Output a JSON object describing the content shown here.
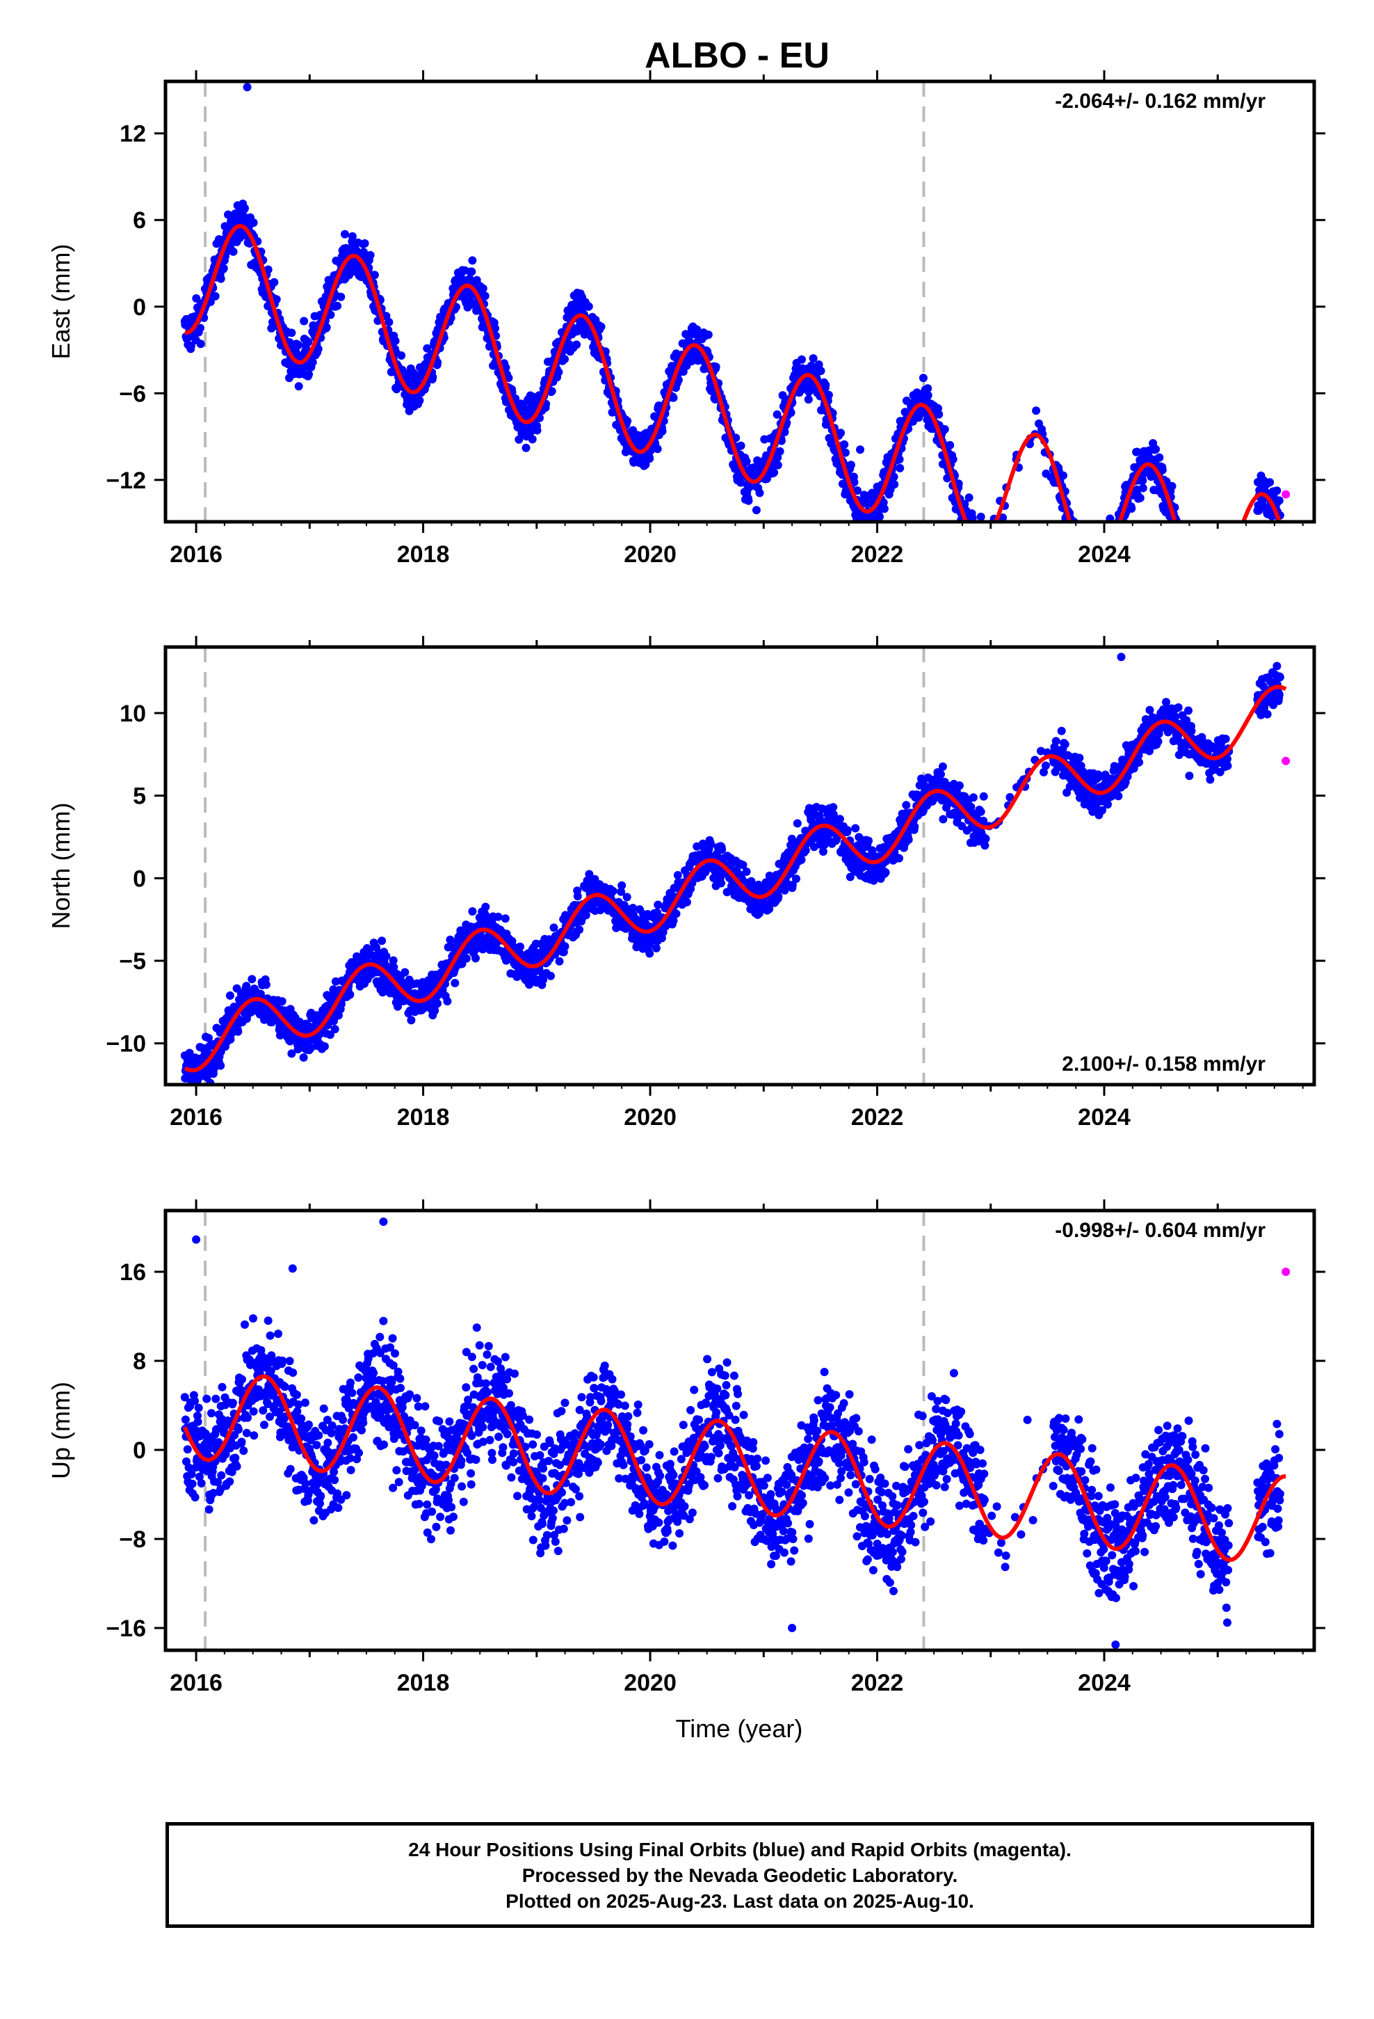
{
  "title": "ALBO - EU",
  "xlabel": "Time (year)",
  "x_ticks": [
    "2016",
    "2018",
    "2020",
    "2022",
    "2024"
  ],
  "footer": {
    "line1": "24 Hour Positions Using Final Orbits (blue) and Rapid Orbits (magenta).",
    "line2": "Processed by the Nevada Geodetic Laboratory.",
    "line3": "Plotted on 2025-Aug-23. Last data on 2025-Aug-10."
  },
  "colors": {
    "final_orbits": "#0000ff",
    "rapid_orbits": "#ff00ff",
    "model": "#ff0000",
    "event_lines": "#bbbbbb"
  },
  "chart_data": [
    {
      "type": "scatter",
      "ylabel": "East (mm)",
      "rate_label": "-2.064+/- 0.162 mm/yr",
      "xlim": [
        2015.73,
        2025.85
      ],
      "ylim": [
        -14.9,
        15.6
      ],
      "yticks": [
        12,
        6,
        0,
        -6,
        -12
      ],
      "ytick_labels": [
        "12",
        "6",
        "0",
        "−6",
        "−12"
      ],
      "event_lines": [
        2016.08,
        2022.41
      ],
      "series": [
        {
          "role": "final",
          "x_range": [
            2015.9,
            2025.55
          ],
          "trend": 2.2,
          "rate": -2.064,
          "amplitude": 4.2,
          "phase": 2016.4,
          "noise": 1.1,
          "outliers": [
            [
              2015.95,
              -1.3
            ],
            [
              2016.45,
              15.2
            ],
            [
              2016.95,
              -1.0
            ],
            [
              2021.85,
              -9.9
            ]
          ]
        },
        {
          "role": "rapid",
          "points": [
            [
              2025.6,
              -13.0
            ]
          ]
        },
        {
          "role": "model",
          "x_range": [
            2015.9,
            2025.6
          ],
          "trend": 2.2,
          "rate": -2.064,
          "amplitude": 4.2,
          "phase": 2016.4
        }
      ]
    },
    {
      "type": "scatter",
      "ylabel": "North (mm)",
      "rate_label": "2.100+/- 0.158 mm/yr",
      "xlim": [
        2015.73,
        2025.85
      ],
      "ylim": [
        -12.5,
        14.0
      ],
      "yticks": [
        10,
        5,
        0,
        -5,
        -10
      ],
      "ytick_labels": [
        "10",
        "5",
        "0",
        "−5",
        "−10"
      ],
      "event_lines": [
        2016.08,
        2022.41
      ],
      "series": [
        {
          "role": "final",
          "x_range": [
            2015.9,
            2025.55
          ],
          "trend": -10.0,
          "rate": 2.1,
          "amplitude": 1.6,
          "phase": 2016.5,
          "noise": 0.9,
          "outliers": [
            [
              2015.95,
              -12.2
            ],
            [
              2024.15,
              13.4
            ],
            [
              2024.75,
              6.2
            ]
          ]
        },
        {
          "role": "rapid",
          "points": [
            [
              2025.6,
              7.1
            ]
          ]
        },
        {
          "role": "model",
          "x_range": [
            2015.9,
            2025.6
          ],
          "trend": -10.0,
          "rate": 2.1,
          "amplitude": 1.6,
          "phase": 2016.5
        }
      ]
    },
    {
      "type": "scatter",
      "ylabel": "Up (mm)",
      "rate_label": "-0.998+/- 0.604 mm/yr",
      "xlim": [
        2015.73,
        2025.85
      ],
      "ylim": [
        -18.0,
        21.5
      ],
      "yticks": [
        16,
        8,
        0,
        -8,
        -16
      ],
      "ytick_labels": [
        "16",
        "8",
        "0",
        "−8",
        "−16"
      ],
      "event_lines": [
        2016.08,
        2022.41
      ],
      "series": [
        {
          "role": "final",
          "x_range": [
            2015.9,
            2025.55
          ],
          "trend": 3.2,
          "rate": -0.998,
          "amplitude": 4.0,
          "phase": 2016.6,
          "noise": 3.6,
          "outliers": [
            [
              2016.0,
              18.9
            ],
            [
              2017.65,
              20.5
            ],
            [
              2016.85,
              16.3
            ],
            [
              2021.25,
              -16.0
            ],
            [
              2024.1,
              -17.5
            ]
          ]
        },
        {
          "role": "rapid",
          "points": [
            [
              2025.6,
              16.0
            ]
          ]
        },
        {
          "role": "model",
          "x_range": [
            2015.9,
            2025.6
          ],
          "trend": 3.2,
          "rate": -0.998,
          "amplitude": 4.0,
          "phase": 2016.6
        }
      ]
    }
  ]
}
